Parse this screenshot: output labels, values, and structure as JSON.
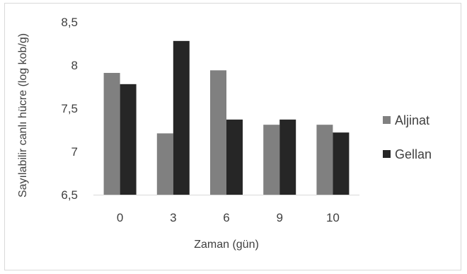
{
  "chart_data": {
    "type": "bar",
    "title": "",
    "xlabel": "Zaman (gün)",
    "ylabel": "Sayılabilir canlı hücre (log kob/g)",
    "categories": [
      "0",
      "3",
      "6",
      "9",
      "10"
    ],
    "series": [
      {
        "name": "Aljinat",
        "color": "#808080",
        "values": [
          7.91,
          7.21,
          7.94,
          7.31,
          7.31
        ]
      },
      {
        "name": "Gellan",
        "color": "#262626",
        "values": [
          7.78,
          8.28,
          7.37,
          7.37,
          7.22
        ]
      }
    ],
    "ylim": [
      6.5,
      8.5
    ],
    "yticks": [
      "6,5",
      "7",
      "7,5",
      "8",
      "8,5"
    ],
    "ytick_values": [
      6.5,
      7,
      7.5,
      8,
      8.5
    ],
    "grid": false,
    "legend_position": "right"
  }
}
